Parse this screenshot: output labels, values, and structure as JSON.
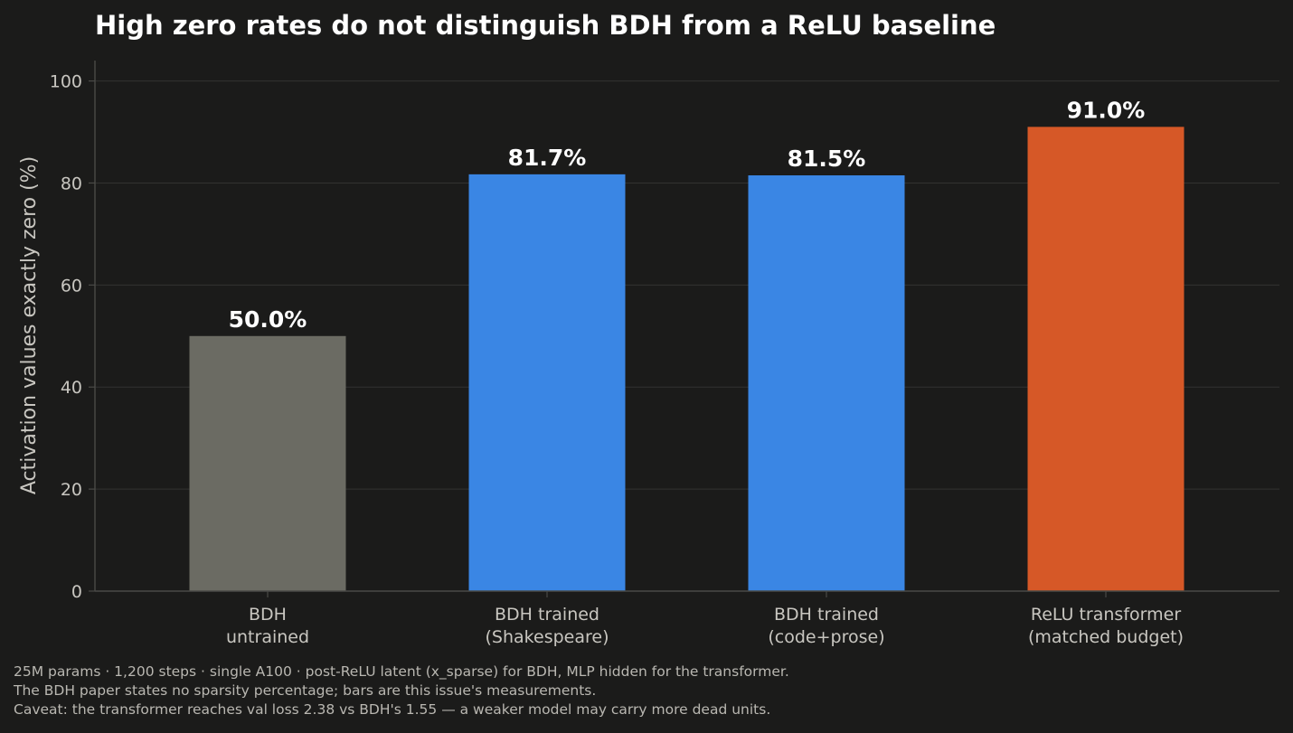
{
  "chart_data": {
    "type": "bar",
    "title": "High zero rates do not distinguish BDH from a ReLU baseline",
    "xlabel": "",
    "ylabel": "Activation values exactly zero (%)",
    "ylim": [
      0,
      104
    ],
    "yticks": [
      0,
      20,
      40,
      60,
      80,
      100
    ],
    "grid": true,
    "categories": [
      [
        "BDH",
        "untrained"
      ],
      [
        "BDH trained",
        "(Shakespeare)"
      ],
      [
        "BDH trained",
        "(code+prose)"
      ],
      [
        "ReLU transformer",
        "(matched budget)"
      ]
    ],
    "values": [
      50.0,
      81.7,
      81.5,
      91.0
    ],
    "value_labels": [
      "50.0%",
      "81.7%",
      "81.5%",
      "91.0%"
    ],
    "colors": [
      "#6b6b63",
      "#3a86e4",
      "#3a86e4",
      "#d65827"
    ]
  },
  "footnotes": [
    "25M params · 1,200 steps · single A100 · post-ReLU latent (x_sparse) for BDH, MLP hidden for the transformer.",
    "The BDH paper states no sparsity percentage; bars are this issue's measurements.",
    "Caveat: the transformer reaches val loss 2.38 vs BDH's 1.55 — a weaker model may carry more dead units."
  ],
  "theme": {
    "background": "#1b1b1a",
    "grid": "#333331",
    "axis": "#4a4a47"
  }
}
